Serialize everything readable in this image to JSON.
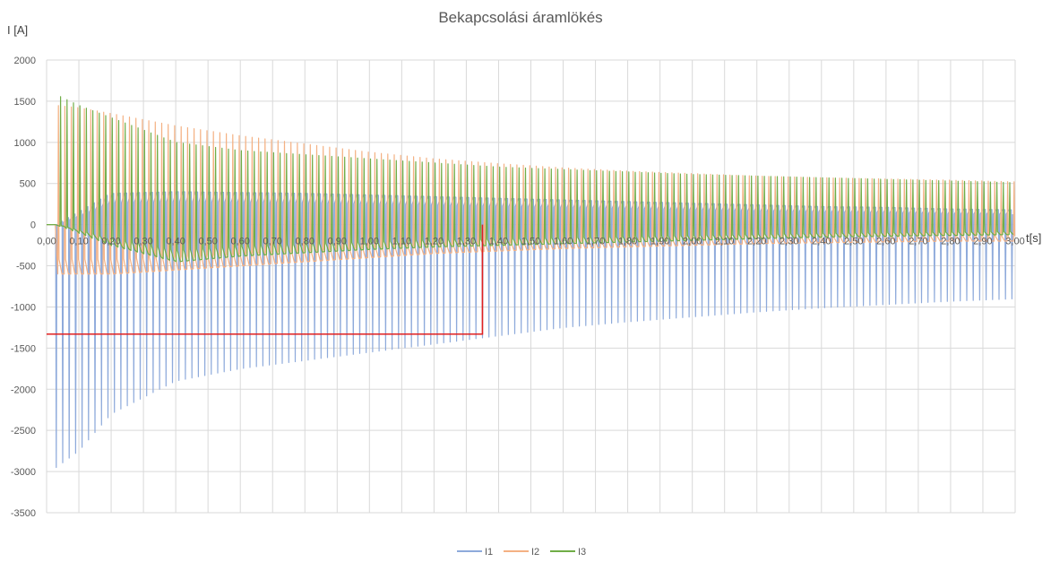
{
  "chart_data": {
    "type": "line",
    "title": "Bekapcsolási áramlökés",
    "ylabel": "I [A]",
    "xlabel": "t[s]",
    "ylim": [
      -3500,
      2000
    ],
    "xlim": [
      0,
      3.0
    ],
    "y_ticks": [
      "2000",
      "1500",
      "1000",
      "500",
      "0",
      "-500",
      "-1000",
      "-1500",
      "-2000",
      "-2500",
      "-3000",
      "-3500"
    ],
    "y_tick_values": [
      2000,
      1500,
      1000,
      500,
      0,
      -500,
      -1000,
      -1500,
      -2000,
      -2500,
      -3000,
      -3500
    ],
    "x_ticks": [
      "0,00",
      "0,10",
      "0,20",
      "0,30",
      "0,40",
      "0,50",
      "0,60",
      "0,70",
      "0,80",
      "0,90",
      "1,00",
      "1,10",
      "1,20",
      "1,30",
      "1,40",
      "1,50",
      "1,60",
      "1,70",
      "1,80",
      "1,90",
      "2,00",
      "2,10",
      "2,20",
      "2,30",
      "2,40",
      "2,50",
      "2,60",
      "2,70",
      "2,80",
      "2,90",
      "3,00"
    ],
    "x_tick_values": [
      0,
      0.1,
      0.2,
      0.3,
      0.4,
      0.5,
      0.6,
      0.7,
      0.8,
      0.9,
      1.0,
      1.1,
      1.2,
      1.3,
      1.4,
      1.5,
      1.6,
      1.7,
      1.8,
      1.9,
      2.0,
      2.1,
      2.2,
      2.3,
      2.4,
      2.5,
      2.6,
      2.7,
      2.8,
      2.9,
      3.0
    ],
    "grid": true,
    "legend_position": "bottom",
    "series": [
      {
        "name": "I1",
        "color": "#8eaadb",
        "description_of_shape": "50 Hz inrush waveform, negative peaks decaying",
        "frequency_hz": 50,
        "envelope_t": [
          0.03,
          0.1,
          0.2,
          0.4,
          0.6,
          0.8,
          1.0,
          1.2,
          1.4,
          1.6,
          1.8,
          2.0,
          2.2,
          2.4,
          2.6,
          2.8,
          3.0
        ],
        "peak_min": [
          -2950,
          -2750,
          -2300,
          -1900,
          -1750,
          -1650,
          -1550,
          -1450,
          -1350,
          -1250,
          -1180,
          -1120,
          -1060,
          -1010,
          -970,
          -930,
          -900
        ],
        "base_max": [
          0,
          150,
          380,
          400,
          390,
          380,
          360,
          340,
          320,
          300,
          280,
          260,
          240,
          220,
          210,
          190,
          180
        ]
      },
      {
        "name": "I2",
        "color": "#f4b183",
        "envelope_t": [
          0.03,
          0.1,
          0.2,
          0.4,
          0.6,
          0.8,
          1.0,
          1.2,
          1.4,
          1.6,
          1.8,
          2.0,
          2.2,
          2.4,
          2.6,
          2.8,
          3.0
        ],
        "peak_max": [
          1450,
          1420,
          1350,
          1200,
          1080,
          980,
          880,
          800,
          740,
          690,
          650,
          620,
          590,
          570,
          555,
          540,
          520
        ],
        "base_min": [
          -600,
          -600,
          -600,
          -550,
          -500,
          -450,
          -400,
          -350,
          -320,
          -290,
          -270,
          -250,
          -230,
          -220,
          -210,
          -200,
          -200
        ]
      },
      {
        "name": "I3",
        "color": "#70ad47",
        "envelope_t": [
          0.03,
          0.1,
          0.2,
          0.4,
          0.6,
          0.8,
          1.0,
          1.2,
          1.4,
          1.6,
          1.8,
          2.0,
          2.2,
          2.4,
          2.6,
          2.8,
          3.0
        ],
        "peak_max": [
          1580,
          1450,
          1300,
          1000,
          900,
          850,
          800,
          750,
          700,
          670,
          640,
          610,
          590,
          570,
          550,
          530,
          510
        ],
        "base_min": [
          0,
          -100,
          -250,
          -450,
          -380,
          -340,
          -300,
          -270,
          -250,
          -230,
          -210,
          -190,
          -170,
          -150,
          -140,
          -130,
          -120
        ]
      }
    ],
    "annotation": {
      "type": "red-cursor",
      "color": "#e02020",
      "x": 1.35,
      "y": -1330
    }
  }
}
